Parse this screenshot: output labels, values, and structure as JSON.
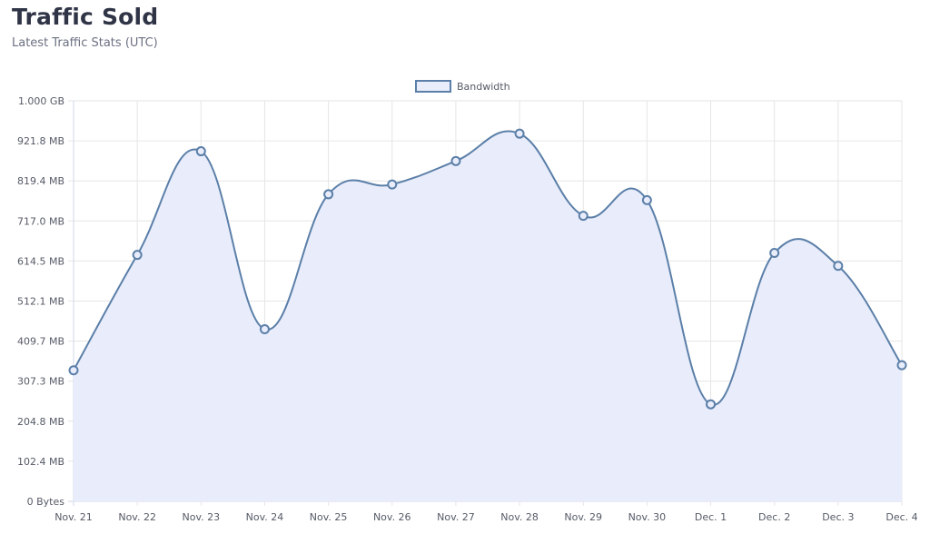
{
  "header": {
    "title": "Traffic Sold",
    "subtitle": "Latest Traffic Stats (UTC)"
  },
  "colors": {
    "line": "#5b7fa8",
    "fill": "#e9edfb",
    "grid": "#e6e6e6",
    "axis": "#cfd8ea"
  },
  "chart_data": {
    "type": "area",
    "categories": [
      "Nov. 21",
      "Nov. 22",
      "Nov. 23",
      "Nov. 24",
      "Nov. 25",
      "Nov. 26",
      "Nov. 27",
      "Nov. 28",
      "Nov. 29",
      "Nov. 30",
      "Dec. 1",
      "Dec. 2",
      "Dec. 3",
      "Dec. 4"
    ],
    "series": [
      {
        "name": "Bandwidth",
        "values": [
          335,
          630,
          895,
          440,
          785,
          810,
          870,
          940,
          730,
          770,
          248,
          635,
          602,
          348
        ],
        "unit": "MB"
      }
    ],
    "yticks": [
      "0 Bytes",
      "102.4 MB",
      "204.8 MB",
      "307.3 MB",
      "409.7 MB",
      "512.1 MB",
      "614.5 MB",
      "717.0 MB",
      "819.4 MB",
      "921.8 MB",
      "1.000 GB"
    ],
    "ylim": [
      0,
      1024
    ],
    "legend": "top-center",
    "grid": true
  }
}
